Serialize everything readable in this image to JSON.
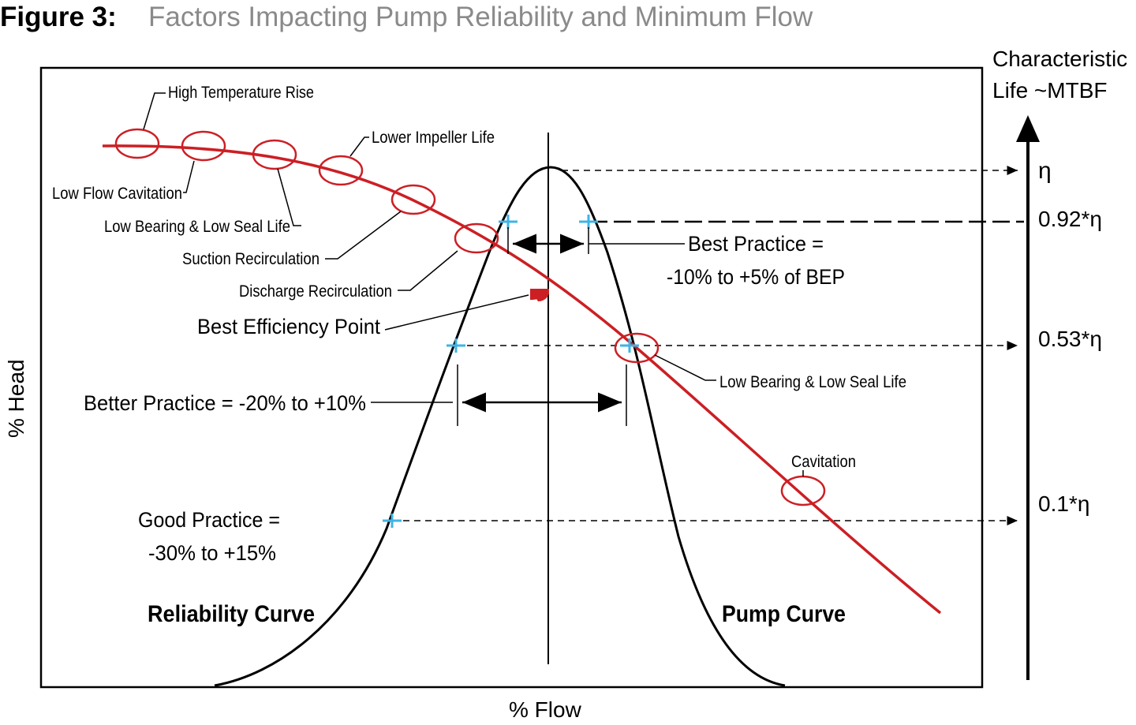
{
  "figure": {
    "label": "Figure 3:",
    "title": "Factors Impacting Pump Reliability and Minimum Flow"
  },
  "axes": {
    "y_label": "% Head",
    "x_label": "% Flow",
    "right_axis_label_line1": "Characteristic",
    "right_axis_label_line2": "Life ~MTBF"
  },
  "right_axis_ticks": [
    {
      "label": "η",
      "fraction": 1.0
    },
    {
      "label": "0.92*η",
      "fraction": 0.92
    },
    {
      "label": "0.53*η",
      "fraction": 0.53
    },
    {
      "label": "0.1*η",
      "fraction": 0.1
    }
  ],
  "annotations": {
    "high_temp_rise": "High Temperature Rise",
    "lower_impeller_life": "Lower Impeller Life",
    "low_flow_cavitation": "Low Flow Cavitation",
    "low_bearing_left": "Low Bearing & Low Seal Life",
    "suction_recirculation": "Suction Recirculation",
    "discharge_recirculation": "Discharge Recirculation",
    "best_efficiency_point": "Best Efficiency Point",
    "best_practice_line1": "Best Practice =",
    "best_practice_line2": "-10% to +5% of BEP",
    "better_practice": "Better Practice = -20% to +10%",
    "good_practice_line1": "Good Practice =",
    "good_practice_line2": "-30% to +15%",
    "low_bearing_right": "Low Bearing & Low Seal Life",
    "cavitation": "Cavitation",
    "reliability_curve": "Reliability Curve",
    "pump_curve": "Pump Curve"
  },
  "colors": {
    "pump_curve": "#cc1f24",
    "reliability_curve": "#000000",
    "tick_marks": "#3fb3e6",
    "bep_marker": "#cc1f24",
    "title_gray": "#8a8a8a"
  }
}
